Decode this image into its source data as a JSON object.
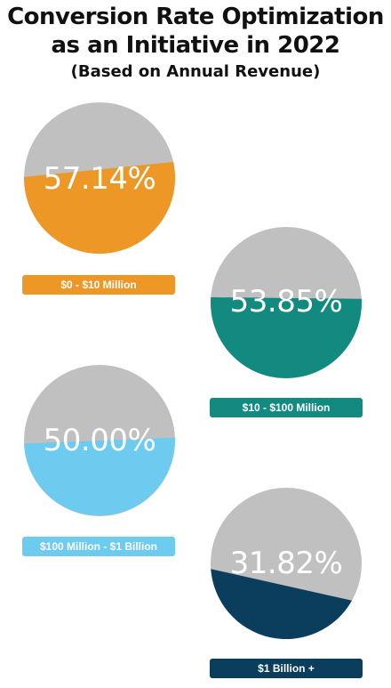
{
  "header": {
    "title_line1": "Conversion Rate Optimization",
    "title_line2": "as an Initiative in 2022",
    "subtitle": "(Based on Annual Revenue)"
  },
  "colors": {
    "remainder": "#c0c0c0",
    "orange": "#ec9726",
    "teal": "#138a80",
    "lightblue": "#6dcbf0",
    "navy": "#0b3d5c"
  },
  "chart_data": [
    {
      "type": "pie",
      "category": "$0 - $10 Million",
      "value": 57.14,
      "label": "57.14%",
      "color": "#ec9726"
    },
    {
      "type": "pie",
      "category": "$10 - $100 Million",
      "value": 53.85,
      "label": "53.85%",
      "color": "#138a80"
    },
    {
      "type": "pie",
      "category": "$100 Million - $1 Billion",
      "value": 50.0,
      "label": "50.00%",
      "color": "#6dcbf0"
    },
    {
      "type": "pie",
      "category": "$1 Billion +",
      "value": 31.82,
      "label": "31.82%",
      "color": "#0b3d5c"
    }
  ]
}
